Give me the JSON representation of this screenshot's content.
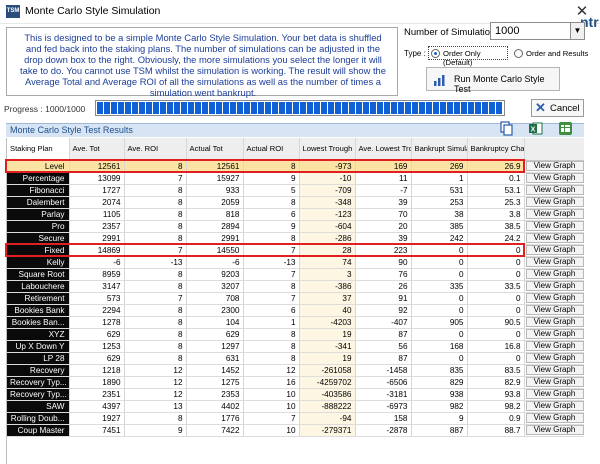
{
  "window": {
    "title": "Monte Carlo Style Simulation",
    "app_icon": "tsm-app-icon",
    "background_text": "ntr"
  },
  "description": "This is designed to be a simple Monte Carlo Style Simulation. Your bet data is shuffled and fed back into the staking plans. The number of simulations can be adjusted in the drop down box to the right. Obviously, the more simulations you select the longer it will take to do. You cannot use TSM whilst the simulation is working. The result will show the Average Total and Average ROI of all the simulations as well as the number of times a simulation went bankrupt.",
  "controls": {
    "num_sims_label": "Number of Simulations",
    "num_sims_value": "1000",
    "type_label": "Type :",
    "option_order_only": "Order Only (Default)",
    "option_order_results": "Order and Results",
    "selected_option": "order_only",
    "run_button": "Run Monte Carlo Style Test"
  },
  "progress": {
    "label": "Progress : 1000/1000",
    "fraction": 1.0,
    "cancel_label": "Cancel"
  },
  "results": {
    "title": "Monte Carlo Style Test Results",
    "columns": [
      "Staking Plan",
      "Ave. Tot",
      "Ave. ROI",
      "Actual Tot",
      "Actual ROI",
      "Lowest Trough",
      "Ave. Lowest Trough",
      "Bankrupt Simulations",
      "Bankruptcy Chance %",
      ""
    ],
    "view_graph_label": "View Graph",
    "rows": [
      [
        "Level",
        "12561",
        "8",
        "12561",
        "8",
        "-973",
        "169",
        "269",
        "26.9"
      ],
      [
        "Percentage",
        "13099",
        "7",
        "15927",
        "9",
        "-10",
        "11",
        "1",
        "0.1"
      ],
      [
        "Fibonacci",
        "1727",
        "8",
        "933",
        "5",
        "-709",
        "-7",
        "531",
        "53.1"
      ],
      [
        "Dalembert",
        "2074",
        "8",
        "2059",
        "8",
        "-348",
        "39",
        "253",
        "25.3"
      ],
      [
        "Parlay",
        "1105",
        "8",
        "818",
        "6",
        "-123",
        "70",
        "38",
        "3.8"
      ],
      [
        "Pro",
        "2357",
        "8",
        "2894",
        "9",
        "-604",
        "20",
        "385",
        "38.5"
      ],
      [
        "Secure",
        "2991",
        "8",
        "2991",
        "8",
        "-286",
        "39",
        "242",
        "24.2"
      ],
      [
        "Fixed",
        "14869",
        "7",
        "14550",
        "7",
        "28",
        "223",
        "0",
        "0"
      ],
      [
        "Kelly",
        "-6",
        "-13",
        "-6",
        "-13",
        "74",
        "90",
        "0",
        "0"
      ],
      [
        "Square Root",
        "8959",
        "8",
        "9203",
        "7",
        "3",
        "76",
        "0",
        "0"
      ],
      [
        "Labouchere",
        "3147",
        "8",
        "3207",
        "8",
        "-386",
        "26",
        "335",
        "33.5"
      ],
      [
        "Retirement",
        "573",
        "7",
        "708",
        "7",
        "37",
        "91",
        "0",
        "0"
      ],
      [
        "Bookies Bank",
        "2294",
        "8",
        "2300",
        "6",
        "40",
        "92",
        "0",
        "0"
      ],
      [
        "Bookies Ban...",
        "1278",
        "8",
        "104",
        "1",
        "-4203",
        "-407",
        "905",
        "90.5"
      ],
      [
        "XYZ",
        "629",
        "8",
        "629",
        "8",
        "19",
        "87",
        "0",
        "0"
      ],
      [
        "Up X Down Y",
        "1253",
        "8",
        "1297",
        "8",
        "-341",
        "56",
        "168",
        "16.8"
      ],
      [
        "LP 28",
        "629",
        "8",
        "631",
        "8",
        "19",
        "87",
        "0",
        "0"
      ],
      [
        "Recovery",
        "1218",
        "12",
        "1452",
        "12",
        "-261058",
        "-1458",
        "835",
        "83.5"
      ],
      [
        "Recovery Typ...",
        "1890",
        "12",
        "1275",
        "16",
        "-4259702",
        "-6506",
        "829",
        "82.9"
      ],
      [
        "Recovery Typ...",
        "2351",
        "12",
        "2353",
        "10",
        "-403586",
        "-3181",
        "938",
        "93.8"
      ],
      [
        "SAW",
        "4397",
        "13",
        "4402",
        "10",
        "-888222",
        "-6973",
        "982",
        "98.2"
      ],
      [
        "Rolling Doub...",
        "1927",
        "8",
        "1776",
        "7",
        "-94",
        "158",
        "9",
        "0.9"
      ],
      [
        "Coup Master",
        "7451",
        "9",
        "7422",
        "10",
        "-279371",
        "-2878",
        "887",
        "88.7"
      ]
    ],
    "selected_row": 0,
    "highlighted_rows": [
      0,
      7
    ]
  },
  "colors": {
    "desc_text": "#1c3d99",
    "plan_cell_bg": "#0a0a0a",
    "selected_row_bg": "#fbe3a3",
    "lowest_trough_bg": "#fdf6e2",
    "highlight_border": "#e02020",
    "progress_fill": "#1060d8"
  }
}
